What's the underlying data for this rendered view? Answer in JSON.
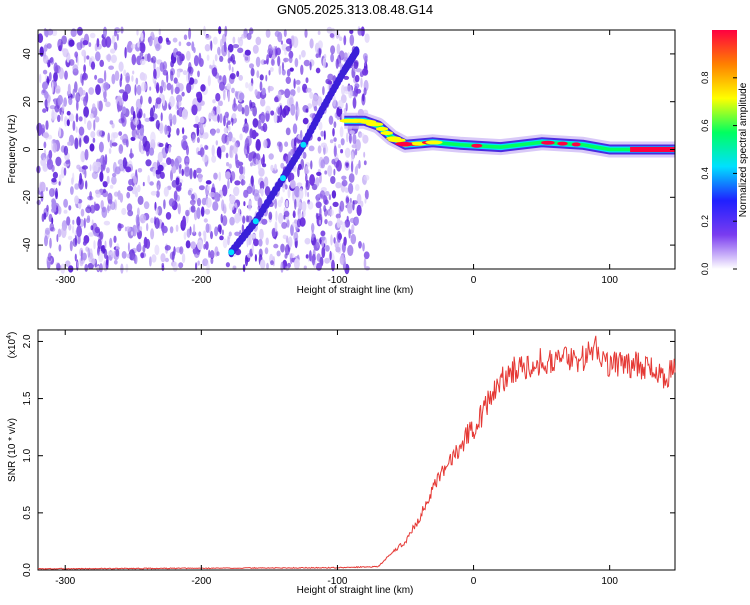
{
  "title": "GN05.2025.313.08.48.G14",
  "colors": {
    "snr_line": "#e53935",
    "axis": "#000000",
    "spectro_base": "#7a3cf0"
  },
  "chart_data": [
    {
      "type": "heatmap",
      "xlabel": "Height of straight line (km)",
      "ylabel": "Frequency (Hz)",
      "xlim": [
        -320,
        148
      ],
      "ylim": [
        -50,
        50
      ],
      "xticks": [
        -300,
        -200,
        -100,
        0,
        100
      ],
      "yticks": [
        -40,
        -20,
        0,
        20,
        40
      ],
      "colorbar": {
        "label": "Normalized spectral amplitude",
        "range": [
          0,
          1
        ],
        "ticks": [
          "0.0",
          "0.2",
          "0.4",
          "0.6",
          "0.8"
        ],
        "colormap": [
          "#ffffff",
          "#7a3cf0",
          "#2020ff",
          "#00e0ff",
          "#00ff60",
          "#ffff00",
          "#ff8000",
          "#ff0040"
        ]
      },
      "noise_region_x": [
        -320,
        -78
      ],
      "ridge": [
        {
          "x": -178,
          "y": -43
        },
        {
          "x": -160,
          "y": -30
        },
        {
          "x": -140,
          "y": -12
        },
        {
          "x": -125,
          "y": 2
        },
        {
          "x": -110,
          "y": 18
        },
        {
          "x": -95,
          "y": 33
        },
        {
          "x": -85,
          "y": 42
        }
      ],
      "trace": [
        {
          "x": -95,
          "y": 12
        },
        {
          "x": -80,
          "y": 12
        },
        {
          "x": -70,
          "y": 10
        },
        {
          "x": -60,
          "y": 5
        },
        {
          "x": -50,
          "y": 2
        },
        {
          "x": -30,
          "y": 3
        },
        {
          "x": -10,
          "y": 2
        },
        {
          "x": 20,
          "y": 1
        },
        {
          "x": 50,
          "y": 3
        },
        {
          "x": 80,
          "y": 2
        },
        {
          "x": 100,
          "y": 0
        },
        {
          "x": 120,
          "y": 0
        },
        {
          "x": 148,
          "y": 0
        }
      ]
    },
    {
      "type": "line",
      "xlabel": "Height of straight line (km)",
      "ylabel": "SNR (10 * v/v)",
      "multiplier_label": "(x10",
      "multiplier_exp": "4",
      "multiplier_close": ")",
      "xlim": [
        -320,
        148
      ],
      "ylim": [
        0,
        2.1
      ],
      "xticks": [
        -300,
        -200,
        -100,
        0,
        100
      ],
      "yticks": [
        "0.0",
        "0.5",
        "1.0",
        "1.5",
        "2.0"
      ],
      "series": [
        {
          "x": [
            -320,
            -100,
            -70,
            -60,
            -50,
            -40,
            -30,
            -20,
            -10,
            0,
            10,
            20,
            30,
            40,
            60,
            80,
            90,
            100,
            120,
            140,
            148
          ],
          "y": [
            0.01,
            0.02,
            0.03,
            0.15,
            0.25,
            0.45,
            0.7,
            0.9,
            1.1,
            1.25,
            1.45,
            1.65,
            1.75,
            1.8,
            1.85,
            1.85,
            1.95,
            1.8,
            1.8,
            1.7,
            1.75
          ]
        }
      ]
    }
  ]
}
